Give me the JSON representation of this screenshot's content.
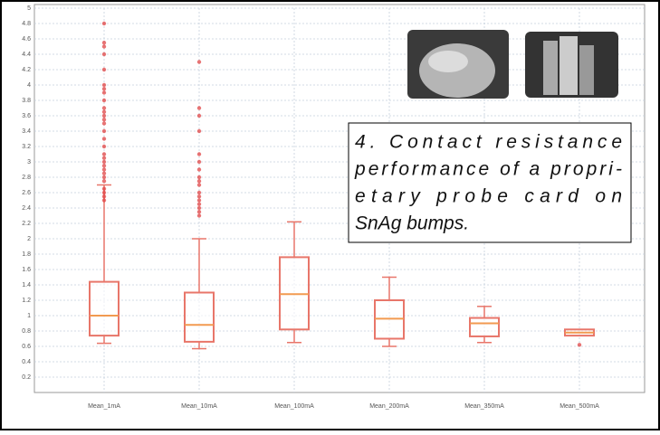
{
  "chart_data": {
    "type": "box",
    "categories": [
      "Mean_1mA",
      "Mean_10mA",
      "Mean_100mA",
      "Mean_200mA",
      "Mean_350mA",
      "Mean_500mA"
    ],
    "boxes": [
      {
        "whislo": 0.64,
        "q1": 0.74,
        "med": 1.0,
        "q3": 1.44,
        "whishi": 2.7,
        "fliers": [
          2.5,
          2.55,
          2.6,
          2.65,
          2.75,
          2.8,
          2.85,
          2.9,
          2.95,
          3.0,
          3.05,
          3.1,
          3.2,
          3.3,
          3.4,
          3.5,
          3.55,
          3.6,
          3.65,
          3.7,
          3.8,
          3.9,
          3.95,
          4.0,
          4.2,
          4.4,
          4.5,
          4.55,
          4.8
        ]
      },
      {
        "whislo": 0.57,
        "q1": 0.66,
        "med": 0.88,
        "q3": 1.3,
        "whishi": 2.0,
        "fliers": [
          2.3,
          2.35,
          2.4,
          2.45,
          2.5,
          2.55,
          2.6,
          2.7,
          2.75,
          2.8,
          2.9,
          3.0,
          3.1,
          3.4,
          3.6,
          3.7,
          4.3
        ]
      },
      {
        "whislo": 0.65,
        "q1": 0.82,
        "med": 1.28,
        "q3": 1.76,
        "whishi": 2.22,
        "fliers": []
      },
      {
        "whislo": 0.6,
        "q1": 0.7,
        "med": 0.96,
        "q3": 1.2,
        "whishi": 1.5,
        "fliers": []
      },
      {
        "whislo": 0.65,
        "q1": 0.73,
        "med": 0.9,
        "q3": 0.97,
        "whishi": 1.12,
        "fliers": []
      },
      {
        "whislo": 0.74,
        "q1": 0.74,
        "med": 0.78,
        "q3": 0.82,
        "whishi": 0.82,
        "fliers": [
          0.62
        ]
      }
    ],
    "box_color": "#e8766a",
    "median_color": "#f29a50",
    "flier_color": "#e03a3a",
    "ylim": [
      0,
      5
    ],
    "yticks": [
      0.2,
      0.4,
      0.6,
      0.8,
      1,
      1.2,
      1.4,
      1.6,
      1.8,
      2,
      2.2,
      2.4,
      2.6,
      2.8,
      3,
      3.2,
      3.4,
      3.6,
      3.8,
      4,
      4.2,
      4.4,
      4.6,
      4.8,
      5
    ],
    "grid": true,
    "caption_lines": [
      "4.  Contact resistance",
      "performance of a propri-",
      "etary probe card on",
      "SnAg bumps."
    ]
  }
}
